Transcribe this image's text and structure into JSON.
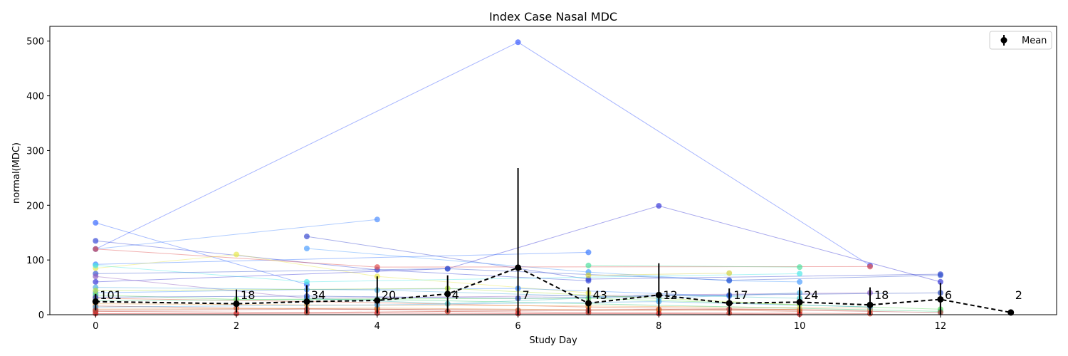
{
  "chart_data": {
    "type": "line",
    "title": "Index Case Nasal MDC",
    "xlabel": "Study Day",
    "ylabel": "normal(MDC)",
    "xlim": [
      -0.65,
      13.65
    ],
    "ylim": [
      0,
      527
    ],
    "xticks": [
      0,
      2,
      4,
      6,
      8,
      10,
      12
    ],
    "yticks": [
      0,
      100,
      200,
      300,
      400,
      500
    ],
    "legend": {
      "position": "top-right",
      "entries": [
        "Mean"
      ]
    },
    "mean_series": {
      "name": "Mean",
      "color": "#000000",
      "points": [
        {
          "x": 0,
          "y": 24,
          "err": [
            8,
            38
          ],
          "n": "101"
        },
        {
          "x": 2,
          "y": 20,
          "err": [
            4,
            46
          ],
          "n": "18"
        },
        {
          "x": 3,
          "y": 24,
          "err": [
            2,
            54
          ],
          "n": "34"
        },
        {
          "x": 4,
          "y": 26,
          "err": [
            2,
            70
          ],
          "n": "20"
        },
        {
          "x": 5,
          "y": 38,
          "err": [
            4,
            72
          ],
          "n": "4"
        },
        {
          "x": 6,
          "y": 86,
          "err": [
            0,
            268
          ],
          "n": "7"
        },
        {
          "x": 7,
          "y": 21,
          "err": [
            2,
            50
          ],
          "n": "43"
        },
        {
          "x": 8,
          "y": 36,
          "err": [
            0,
            94
          ],
          "n": "12"
        },
        {
          "x": 9,
          "y": 21,
          "err": [
            0,
            48
          ],
          "n": "17"
        },
        {
          "x": 10,
          "y": 23,
          "err": [
            2,
            50
          ],
          "n": "24"
        },
        {
          "x": 11,
          "y": 18,
          "err": [
            0,
            50
          ],
          "n": "18"
        },
        {
          "x": 12,
          "y": 28,
          "err": [
            0,
            58
          ],
          "n": "6"
        },
        {
          "x": 13,
          "y": 4,
          "err": [
            4,
            4
          ],
          "n": "2"
        }
      ]
    },
    "subject_series": [
      {
        "color": "#3b5bff",
        "points": [
          [
            0,
            120
          ],
          [
            6,
            498
          ],
          [
            11,
            90
          ]
        ]
      },
      {
        "color": "#3b3bd8",
        "points": [
          [
            0,
            60
          ],
          [
            5,
            84
          ],
          [
            8,
            199
          ],
          [
            12,
            60
          ]
        ]
      },
      {
        "color": "#3b6bff",
        "points": [
          [
            0,
            168
          ],
          [
            3,
            55
          ]
        ]
      },
      {
        "color": "#4f8fff",
        "points": [
          [
            0,
            120
          ],
          [
            4,
            174
          ]
        ]
      },
      {
        "color": "#3b4bd0",
        "points": [
          [
            3,
            143
          ],
          [
            7,
            65
          ],
          [
            12,
            74
          ]
        ]
      },
      {
        "color": "#4f9fff",
        "points": [
          [
            3,
            121
          ],
          [
            7,
            78
          ],
          [
            9,
            62
          ],
          [
            10,
            60
          ]
        ]
      },
      {
        "color": "#3b7bff",
        "points": [
          [
            0,
            92
          ],
          [
            7,
            114
          ]
        ]
      },
      {
        "color": "#3b4bd8",
        "points": [
          [
            0,
            135
          ],
          [
            4,
            82
          ],
          [
            7,
            62
          ]
        ]
      },
      {
        "color": "#e05050",
        "points": [
          [
            0,
            120
          ],
          [
            4,
            87
          ],
          [
            11,
            88
          ]
        ]
      },
      {
        "color": "#e8e850",
        "points": [
          [
            0,
            85
          ],
          [
            2,
            110
          ],
          [
            4,
            70
          ],
          [
            7,
            40
          ]
        ]
      },
      {
        "color": "#50e0a0",
        "points": [
          [
            7,
            90
          ],
          [
            10,
            87
          ]
        ]
      },
      {
        "color": "#50e8e8",
        "points": [
          [
            0,
            90
          ],
          [
            3,
            60
          ],
          [
            10,
            75
          ]
        ]
      },
      {
        "color": "#3b5bd0",
        "points": [
          [
            0,
            75
          ],
          [
            5,
            84
          ],
          [
            9,
            63
          ],
          [
            12,
            72
          ]
        ]
      },
      {
        "color": "#d0d040",
        "points": [
          [
            7,
            72
          ],
          [
            9,
            76
          ]
        ]
      },
      {
        "color": "#9060c0",
        "points": [
          [
            0,
            70
          ],
          [
            3,
            30
          ],
          [
            11,
            40
          ]
        ]
      },
      {
        "color": "#50b0e0",
        "points": [
          [
            0,
            50
          ],
          [
            4,
            45
          ],
          [
            8,
            30
          ],
          [
            10,
            40
          ]
        ]
      },
      {
        "color": "#3b8bff",
        "points": [
          [
            0,
            40
          ],
          [
            3,
            46
          ],
          [
            6,
            48
          ],
          [
            9,
            34
          ]
        ]
      },
      {
        "color": "#60e060",
        "points": [
          [
            0,
            36
          ],
          [
            2,
            28
          ],
          [
            7,
            30
          ],
          [
            12,
            10
          ]
        ]
      },
      {
        "color": "#40c0c0",
        "points": [
          [
            3,
            30
          ],
          [
            5,
            20
          ],
          [
            8,
            36
          ],
          [
            10,
            30
          ]
        ]
      },
      {
        "color": "#e06040",
        "points": [
          [
            0,
            30
          ],
          [
            4,
            22
          ],
          [
            7,
            14
          ],
          [
            11,
            8
          ]
        ]
      },
      {
        "color": "#d05030",
        "points": [
          [
            0,
            16
          ],
          [
            2,
            12
          ],
          [
            4,
            10
          ],
          [
            6,
            8
          ],
          [
            8,
            10
          ],
          [
            10,
            6
          ]
        ]
      },
      {
        "color": "#c03020",
        "points": [
          [
            0,
            6
          ],
          [
            3,
            4
          ],
          [
            5,
            6
          ],
          [
            7,
            4
          ],
          [
            9,
            3
          ],
          [
            11,
            2
          ]
        ]
      },
      {
        "color": "#e08030",
        "points": [
          [
            0,
            10
          ],
          [
            4,
            12
          ],
          [
            8,
            8
          ],
          [
            10,
            10
          ]
        ]
      },
      {
        "color": "#d02020",
        "points": [
          [
            0,
            2
          ],
          [
            2,
            2
          ],
          [
            4,
            3
          ],
          [
            6,
            2
          ],
          [
            8,
            2
          ],
          [
            10,
            1
          ]
        ]
      },
      {
        "color": "#e8a040",
        "points": [
          [
            0,
            20
          ],
          [
            3,
            18
          ],
          [
            7,
            16
          ],
          [
            11,
            12
          ]
        ]
      },
      {
        "color": "#40d080",
        "points": [
          [
            0,
            26
          ],
          [
            4,
            28
          ],
          [
            7,
            20
          ],
          [
            12,
            6
          ]
        ]
      },
      {
        "color": "#3050c0",
        "points": [
          [
            0,
            32
          ],
          [
            3,
            34
          ],
          [
            6,
            30
          ],
          [
            9,
            36
          ],
          [
            12,
            40
          ]
        ]
      },
      {
        "color": "#b0e040",
        "points": [
          [
            0,
            44
          ],
          [
            5,
            48
          ],
          [
            10,
            18
          ]
        ]
      },
      {
        "color": "#40a0e0",
        "points": [
          [
            0,
            14
          ],
          [
            4,
            18
          ],
          [
            8,
            24
          ],
          [
            11,
            14
          ]
        ]
      },
      {
        "color": "#b04040",
        "points": [
          [
            0,
            8
          ],
          [
            3,
            10
          ],
          [
            7,
            8
          ],
          [
            9,
            10
          ],
          [
            12,
            4
          ]
        ]
      }
    ]
  }
}
